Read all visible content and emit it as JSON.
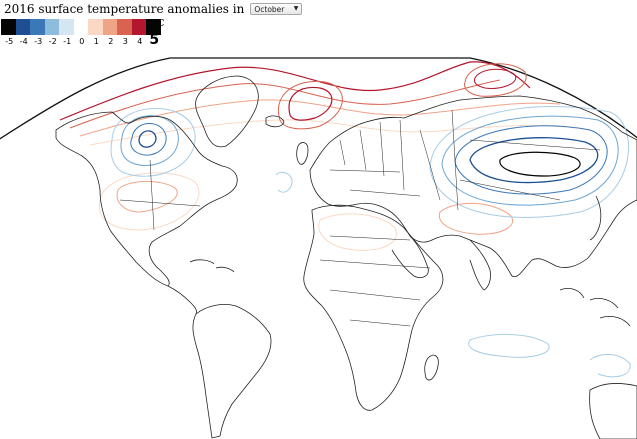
{
  "header": {
    "title": "2016 surface temperature anomalies in",
    "month_selected": "October"
  },
  "legend": {
    "unit": "°C",
    "ticks": [
      "-5",
      "-4",
      "-3",
      "-2",
      "-1",
      "0",
      "1",
      "2",
      "3",
      "4",
      "5"
    ],
    "colors": [
      "#050505",
      "#1e4f92",
      "#3b78b6",
      "#8ebcdc",
      "#d5e6f3",
      "#ffffff",
      "#fbd8c4",
      "#f0a487",
      "#d76350",
      "#b3172d",
      "#050505"
    ]
  },
  "map": {
    "land_stroke": "#222222",
    "warm_colors": [
      "#fbd8c4",
      "#f0a487",
      "#d76350",
      "#b3172d"
    ],
    "cold_colors": [
      "#a8cde6",
      "#6fa6d2",
      "#3b78b6",
      "#1e4f92"
    ]
  }
}
